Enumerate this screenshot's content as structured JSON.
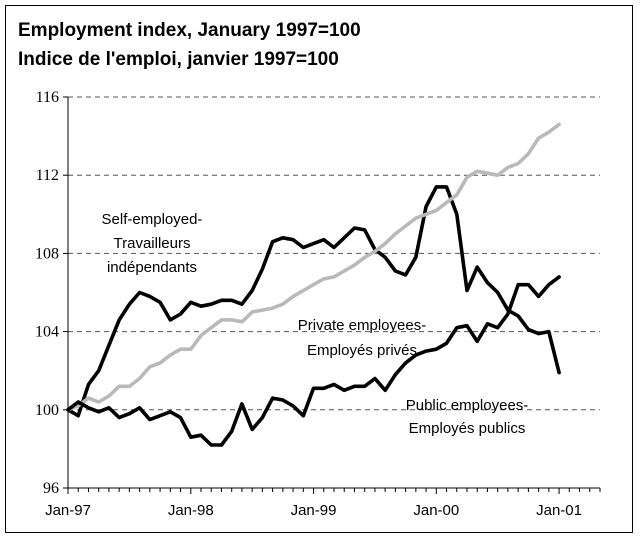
{
  "chart_data": {
    "type": "line",
    "title": "Employment index, January 1997=100",
    "subtitle": "Indice de l'emploi, janvier 1997=100",
    "xlabel": "",
    "ylabel": "",
    "ylim": [
      96,
      116
    ],
    "yticks": [
      "96",
      "100",
      "104",
      "108",
      "112",
      "116"
    ],
    "xticks": [
      "Jan-97",
      "Jan-98",
      "Jan-99",
      "Jan-00",
      "Jan-01"
    ],
    "grid": "horizontal dashed",
    "series": [
      {
        "name": "Self-employed-Travailleurs indépendants",
        "color": "#000000",
        "values": [
          100.0,
          99.7,
          101.3,
          102.0,
          103.3,
          104.6,
          105.4,
          106.0,
          105.8,
          105.5,
          104.6,
          104.9,
          105.5,
          105.3,
          105.4,
          105.6,
          105.6,
          105.4,
          106.1,
          107.2,
          108.6,
          108.8,
          108.7,
          108.3,
          108.5,
          108.7,
          108.3,
          108.8,
          109.3,
          109.2,
          108.2,
          107.8,
          107.1,
          106.9,
          107.8,
          110.4,
          111.4,
          111.4,
          110.0,
          106.1,
          107.3,
          106.5,
          106.0,
          105.1,
          104.8,
          104.1,
          103.9,
          104.0,
          101.9
        ]
      },
      {
        "name": "Private employees-Employés privés",
        "color": "#b9b9b9",
        "values": [
          100.0,
          100.2,
          100.6,
          100.4,
          100.7,
          101.2,
          101.2,
          101.6,
          102.2,
          102.4,
          102.8,
          103.1,
          103.1,
          103.8,
          104.2,
          104.6,
          104.6,
          104.5,
          105.0,
          105.1,
          105.2,
          105.4,
          105.8,
          106.1,
          106.4,
          106.7,
          106.8,
          107.1,
          107.4,
          107.8,
          108.1,
          108.5,
          109.0,
          109.4,
          109.8,
          110.0,
          110.2,
          110.6,
          111.0,
          111.9,
          112.2,
          112.1,
          112.0,
          112.4,
          112.6,
          113.1,
          113.9,
          114.2,
          114.6
        ]
      },
      {
        "name": "Public employees-Employés publics",
        "color": "#000000",
        "values": [
          100.0,
          100.4,
          100.1,
          99.9,
          100.1,
          99.6,
          99.8,
          100.1,
          99.5,
          99.7,
          99.9,
          99.6,
          98.6,
          98.7,
          98.2,
          98.2,
          98.9,
          100.3,
          99.0,
          99.6,
          100.6,
          100.5,
          100.2,
          99.7,
          101.1,
          101.1,
          101.3,
          101.0,
          101.2,
          101.2,
          101.6,
          101.0,
          101.8,
          102.4,
          102.8,
          103.0,
          103.1,
          103.4,
          104.2,
          104.3,
          103.5,
          104.4,
          104.2,
          104.9,
          106.4,
          106.4,
          105.8,
          106.4,
          106.8
        ]
      }
    ],
    "annotations": [
      [
        "Self-employed-",
        "Travailleurs",
        "indépendants"
      ],
      [
        "Private employees-",
        "Employés privés"
      ],
      [
        "Public employees-",
        "Employés publics"
      ]
    ]
  }
}
